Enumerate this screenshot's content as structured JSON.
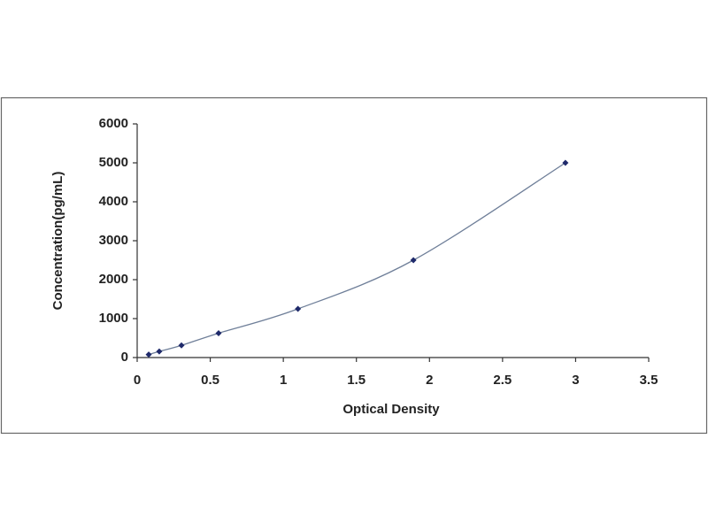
{
  "chart_data": {
    "type": "scatter",
    "x_label": "Optical Density",
    "y_label": "Concentration(pg/mL)",
    "x": [
      0.079,
      0.151,
      0.303,
      0.557,
      1.1,
      1.89,
      2.93
    ],
    "series": [
      {
        "values": [
          78,
          156,
          312,
          625,
          1250,
          2500,
          5000
        ],
        "color": "#1f2a6b"
      }
    ],
    "line_color": "#6f7f99",
    "xlim": [
      0,
      3.5
    ],
    "xticks": [
      0,
      0.5,
      1,
      1.5,
      2,
      2.5,
      3,
      3.5
    ],
    "ylim": [
      0,
      6000
    ],
    "yticks": [
      0,
      1000,
      2000,
      3000,
      4000,
      5000,
      6000
    ],
    "grid": false
  }
}
